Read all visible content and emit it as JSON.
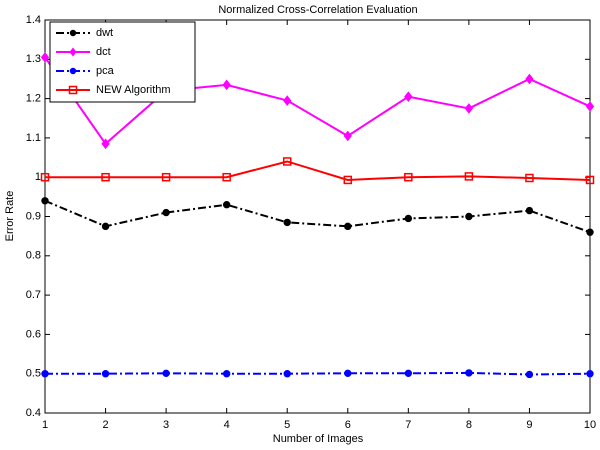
{
  "chart_data": {
    "type": "line",
    "title": "Normalized Cross-Correlation Evaluation",
    "x_label": "Number of Images",
    "y_label": "Error Rate",
    "x": [
      1,
      2,
      3,
      4,
      5,
      6,
      7,
      8,
      9,
      10
    ],
    "series": [
      {
        "name": "dwt",
        "color": "#000000",
        "linestyle": "-.",
        "marker": "o",
        "values": [
          0.94,
          0.875,
          0.91,
          0.93,
          0.885,
          0.875,
          0.895,
          0.9,
          0.915,
          0.86
        ]
      },
      {
        "name": "dct",
        "color": "#ff00ff",
        "linestyle": "-",
        "marker": "d",
        "values": [
          1.305,
          1.085,
          1.22,
          1.235,
          1.195,
          1.105,
          1.205,
          1.175,
          1.25,
          1.18
        ]
      },
      {
        "name": "pca",
        "color": "#0000ff",
        "linestyle": "-.",
        "marker": "o",
        "values": [
          0.5,
          0.5,
          0.501,
          0.5,
          0.5,
          0.501,
          0.501,
          0.502,
          0.498,
          0.5
        ]
      },
      {
        "name": "NEW Algorithm",
        "color": "#ff0000",
        "linestyle": "-",
        "marker": "s",
        "values": [
          1.0,
          1.0,
          1.0,
          1.0,
          1.04,
          0.993,
          1.0,
          1.002,
          0.998,
          0.993
        ]
      }
    ],
    "xlim": [
      1,
      10
    ],
    "xticks": [
      1,
      2,
      3,
      4,
      5,
      6,
      7,
      8,
      9,
      10
    ],
    "ylim": [
      0.4,
      1.4
    ],
    "yticks": [
      0.4,
      0.5,
      0.6,
      0.7,
      0.8,
      0.9,
      1,
      1.1,
      1.2,
      1.3,
      1.4
    ],
    "legend": "upper-left"
  }
}
